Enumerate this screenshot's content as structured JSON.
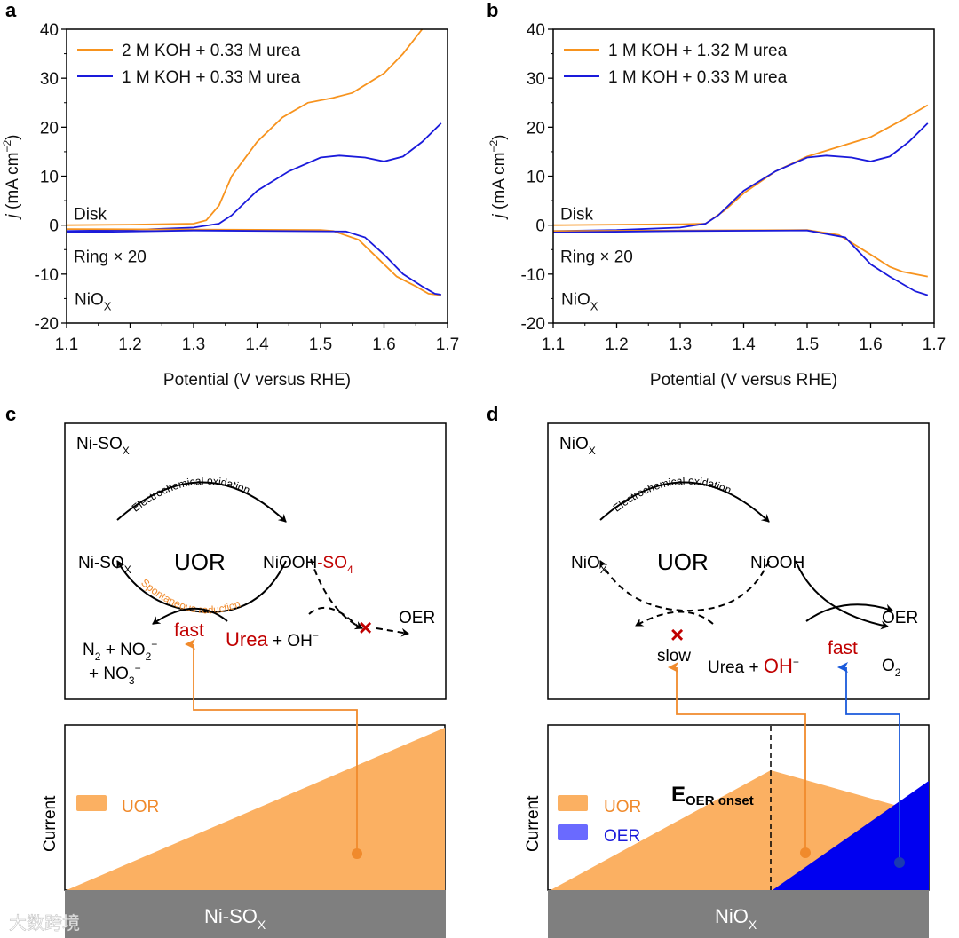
{
  "panels": {
    "a": "a",
    "b": "b",
    "c": "c",
    "d": "d"
  },
  "colors": {
    "orange": "#f7931e",
    "blue": "#1a1adb",
    "uor_fill": "#fbb062",
    "oer_fill": "#0000f0",
    "bar_gray": "#7f7f7f",
    "red": "#c00000"
  },
  "chart_data": [
    {
      "type": "line",
      "panel": "a",
      "title": "",
      "xlabel": "Potential (V versus RHE)",
      "ylabel": "j (mA cm−2)",
      "ylabel_italic": "j",
      "ylabel_rest": " (mA cm",
      "ylabel_sup": "−2",
      "ylabel_end": ")",
      "xlim": [
        1.1,
        1.7
      ],
      "ylim": [
        -20,
        40
      ],
      "xticks": [
        "1.1",
        "1.2",
        "1.3",
        "1.4",
        "1.5",
        "1.6",
        "1.7"
      ],
      "yticks": [
        "-20",
        "-10",
        "0",
        "10",
        "20",
        "30",
        "40"
      ],
      "legend": "top-left",
      "annotations": {
        "disk": "Disk",
        "ring": "Ring × 20",
        "material": "NiO",
        "material_sub": "X"
      },
      "series": [
        {
          "name": "2 M KOH + 0.33 M urea",
          "color": "#f7931e",
          "part": "disk",
          "x": [
            1.1,
            1.2,
            1.3,
            1.32,
            1.34,
            1.36,
            1.4,
            1.44,
            1.48,
            1.52,
            1.55,
            1.6,
            1.63,
            1.66
          ],
          "y": [
            0,
            0.1,
            0.3,
            1,
            4,
            10,
            17,
            22,
            25,
            26,
            27,
            31,
            35,
            40
          ]
        },
        {
          "name": "1 M KOH + 0.33 M urea",
          "color": "#1a1adb",
          "part": "disk",
          "x": [
            1.1,
            1.2,
            1.3,
            1.34,
            1.36,
            1.4,
            1.45,
            1.5,
            1.53,
            1.57,
            1.6,
            1.63,
            1.66,
            1.69
          ],
          "y": [
            -1.2,
            -1,
            -0.5,
            0.3,
            2,
            7,
            11,
            13.8,
            14.2,
            13.8,
            13,
            14,
            17,
            20.8
          ]
        },
        {
          "name": "2 M KOH + 0.33 M urea",
          "color": "#f7931e",
          "part": "ring",
          "x": [
            1.1,
            1.3,
            1.5,
            1.52,
            1.56,
            1.6,
            1.62,
            1.65,
            1.67,
            1.69
          ],
          "y": [
            -0.8,
            -0.9,
            -1,
            -1.2,
            -3,
            -8,
            -10.5,
            -12.5,
            -14,
            -14.3
          ]
        },
        {
          "name": "1 M KOH + 0.33 M urea",
          "color": "#1a1adb",
          "part": "ring",
          "x": [
            1.1,
            1.3,
            1.54,
            1.57,
            1.6,
            1.63,
            1.66,
            1.68,
            1.69
          ],
          "y": [
            -1.5,
            -1.1,
            -1.3,
            -2.5,
            -6,
            -10,
            -12.5,
            -14,
            -14.2
          ]
        }
      ]
    },
    {
      "type": "line",
      "panel": "b",
      "title": "",
      "xlabel": "Potential (V versus RHE)",
      "ylabel": "j (mA cm−2)",
      "ylabel_italic": "j",
      "ylabel_rest": " (mA cm",
      "ylabel_sup": "−2",
      "ylabel_end": ")",
      "xlim": [
        1.1,
        1.7
      ],
      "ylim": [
        -20,
        40
      ],
      "xticks": [
        "1.1",
        "1.2",
        "1.3",
        "1.4",
        "1.5",
        "1.6",
        "1.7"
      ],
      "yticks": [
        "-20",
        "-10",
        "0",
        "10",
        "20",
        "30",
        "40"
      ],
      "legend": "top-left",
      "annotations": {
        "disk": "Disk",
        "ring": "Ring × 20",
        "material": "NiO",
        "material_sub": "X"
      },
      "series": [
        {
          "name": "1 M KOH + 1.32 M urea",
          "color": "#f7931e",
          "part": "disk",
          "x": [
            1.1,
            1.2,
            1.3,
            1.34,
            1.37,
            1.4,
            1.45,
            1.5,
            1.55,
            1.6,
            1.65,
            1.69
          ],
          "y": [
            0,
            0.1,
            0.2,
            0.3,
            3,
            6.5,
            11,
            14,
            16,
            18,
            21.5,
            24.5
          ]
        },
        {
          "name": "1 M KOH + 0.33 M urea",
          "color": "#1a1adb",
          "part": "disk",
          "x": [
            1.1,
            1.2,
            1.3,
            1.34,
            1.36,
            1.4,
            1.45,
            1.5,
            1.53,
            1.57,
            1.6,
            1.63,
            1.66,
            1.69
          ],
          "y": [
            -1.2,
            -1,
            -0.5,
            0.3,
            2,
            7,
            11,
            13.8,
            14.2,
            13.8,
            13,
            14,
            17,
            20.8
          ]
        },
        {
          "name": "1 M KOH + 1.32 M urea",
          "color": "#f7931e",
          "part": "ring",
          "x": [
            1.1,
            1.3,
            1.5,
            1.55,
            1.6,
            1.63,
            1.65,
            1.69
          ],
          "y": [
            -1.2,
            -1.1,
            -1,
            -2,
            -6,
            -8.5,
            -9.5,
            -10.5
          ]
        },
        {
          "name": "1 M KOH + 0.33 M urea",
          "color": "#1a1adb",
          "part": "ring",
          "x": [
            1.1,
            1.3,
            1.5,
            1.56,
            1.6,
            1.63,
            1.65,
            1.67,
            1.69
          ],
          "y": [
            -1.5,
            -1.2,
            -1.1,
            -2.5,
            -8,
            -10.5,
            -12,
            -13.5,
            -14.3
          ]
        }
      ]
    }
  ],
  "diagram_c": {
    "corner_label": {
      "main": "Ni-SO",
      "sub": "X"
    },
    "left_species": {
      "main": "Ni-SO",
      "sub": "X"
    },
    "center": "UOR",
    "right_species": {
      "main": "NiOOH",
      "red": "-SO",
      "red_sub": "4"
    },
    "top_arc": "Electrochemical oxidation",
    "bottom_arc": "Spontaneous reduction",
    "oer": "OER",
    "fast": "fast",
    "urea": "Urea",
    "plus_oh": " + OH",
    "oh_sup": "−",
    "products_1": {
      "a": "N",
      "a_sub": "2",
      "b": " + NO",
      "b_sub": "2",
      "b_sup": "−"
    },
    "products_2": {
      "a": "+ NO",
      "a_sub": "3",
      "a_sup": "−"
    },
    "y_axis": "Current",
    "legend_uor": "UOR",
    "substrate": {
      "main": "Ni-SO",
      "sub": "X"
    }
  },
  "diagram_d": {
    "corner_label": {
      "main": "NiO",
      "sub": "X"
    },
    "left_species": {
      "main": "NiO",
      "sub": "X"
    },
    "center": "UOR",
    "right_species": "NiOOH",
    "top_arc": "Electrochemical oxidation",
    "oer": "OER",
    "slow": "slow",
    "urea": "Urea + ",
    "oh": "OH",
    "oh_sup": "−",
    "fast": "fast",
    "o2": {
      "main": "O",
      "sub": "2"
    },
    "y_axis": "Current",
    "legend_uor": "UOR",
    "legend_oer": "OER",
    "onset": {
      "main": "E",
      "sub": "OER onset"
    },
    "substrate": {
      "main": "NiO",
      "sub": "X"
    }
  },
  "watermark": "大数跨境"
}
